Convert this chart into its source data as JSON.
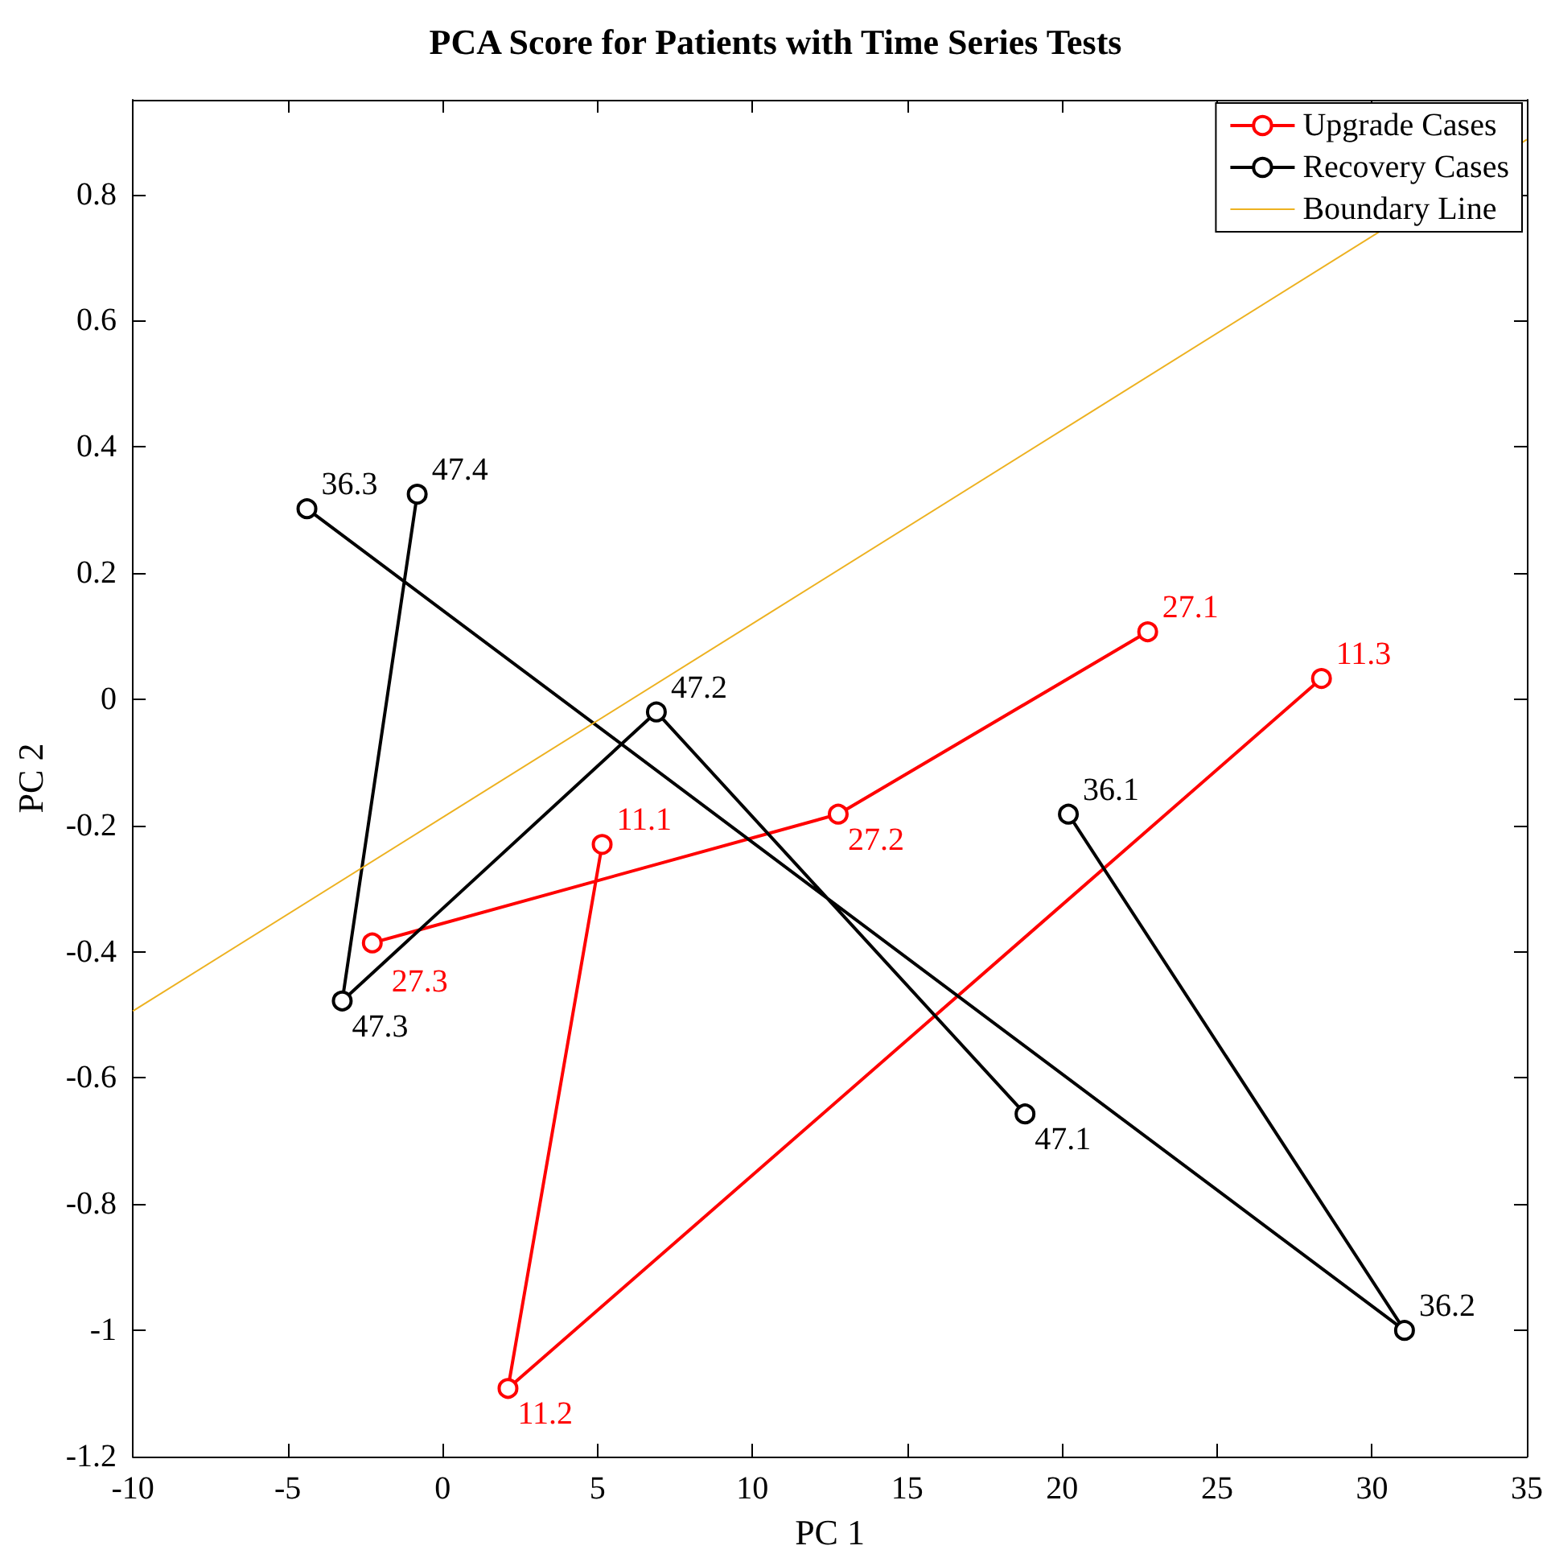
{
  "chart_data": {
    "type": "line",
    "title": "PCA Score for Patients with Time Series Tests",
    "xlabel": "PC 1",
    "ylabel": "PC 2",
    "xlim": [
      -10,
      35
    ],
    "xticks": [
      -10,
      -5,
      0,
      5,
      10,
      15,
      20,
      25,
      30,
      35
    ],
    "ylim": [
      -1.2,
      0.95
    ],
    "yticks": [
      -1.2,
      -1,
      -0.8,
      -0.6,
      -0.4,
      -0.2,
      0,
      0.2,
      0.4,
      0.6,
      0.8
    ],
    "grid": false,
    "legend": "top right",
    "marker": "circle",
    "line_style": "solid",
    "series": [
      {
        "name": "Upgrade Cases",
        "color": "#ff0000",
        "x": [
          22.76,
          12.77,
          -2.27,
          null,
          5.15,
          2.11,
          28.37
        ],
        "values": [
          0.107,
          -0.182,
          -0.386,
          null,
          -0.23,
          -1.092,
          0.033
        ]
      },
      {
        "name": "Recovery Cases",
        "color": "#000000",
        "x": [
          18.8,
          6.9,
          -3.24,
          -0.82,
          null,
          20.2,
          31.05,
          -4.38
        ],
        "values": [
          -0.657,
          -0.02,
          -0.478,
          0.325,
          null,
          -0.182,
          -1.0,
          0.302
        ]
      },
      {
        "name": "Boundary Line",
        "color": "#edb120",
        "x": [
          -10,
          35
        ],
        "values": [
          -0.494,
          0.887
        ],
        "marker": "none"
      }
    ],
    "annotations": [
      {
        "text": "27.1",
        "x": 22.76,
        "y": 0.107
      },
      {
        "text": "27.2",
        "x": 12.77,
        "y": -0.182
      },
      {
        "text": "27.3",
        "x": -2.27,
        "y": -0.386
      },
      {
        "text": "11.1",
        "x": 5.15,
        "y": -0.23
      },
      {
        "text": "11.2",
        "x": 2.11,
        "y": -1.092
      },
      {
        "text": "11.3",
        "x": 28.37,
        "y": 0.033
      },
      {
        "text": "47.1",
        "x": 18.8,
        "y": -0.657
      },
      {
        "text": "47.2",
        "x": 6.9,
        "y": -0.02
      },
      {
        "text": "47.3",
        "x": -3.24,
        "y": -0.478
      },
      {
        "text": "47.4",
        "x": -0.82,
        "y": 0.325
      },
      {
        "text": "36.1",
        "x": 20.2,
        "y": -0.182
      },
      {
        "text": "36.2",
        "x": 31.05,
        "y": -1.0
      },
      {
        "text": "36.3",
        "x": -4.38,
        "y": 0.302
      }
    ]
  }
}
